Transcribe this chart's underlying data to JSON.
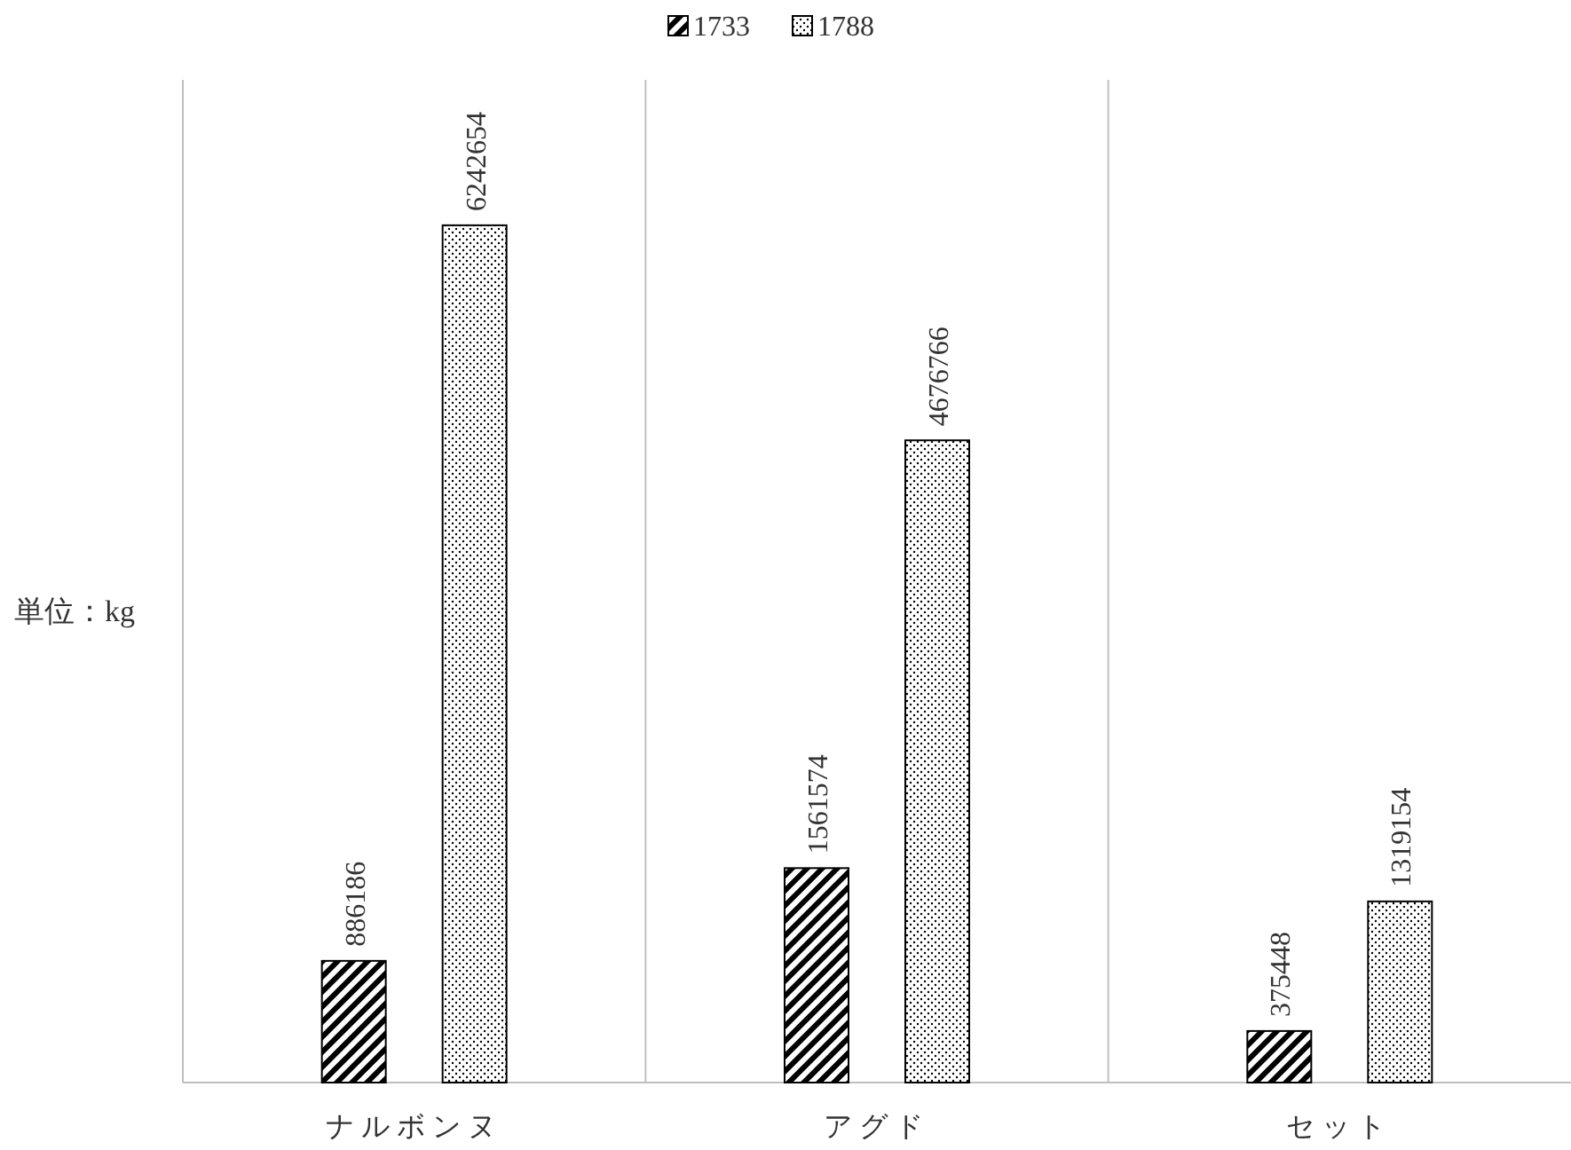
{
  "chart_data": {
    "type": "bar",
    "ylabel": "単位：kg",
    "categories": [
      "ナルボンヌ",
      "アグド",
      "セット"
    ],
    "series": [
      {
        "name": "1733",
        "color": "#000000",
        "values": [
          886186,
          1561574,
          375448
        ]
      },
      {
        "name": "1788",
        "color": "#000000",
        "values": [
          6242654,
          4676766,
          1319154
        ]
      }
    ],
    "data_labels": true,
    "grid": "x",
    "legend": "top"
  }
}
